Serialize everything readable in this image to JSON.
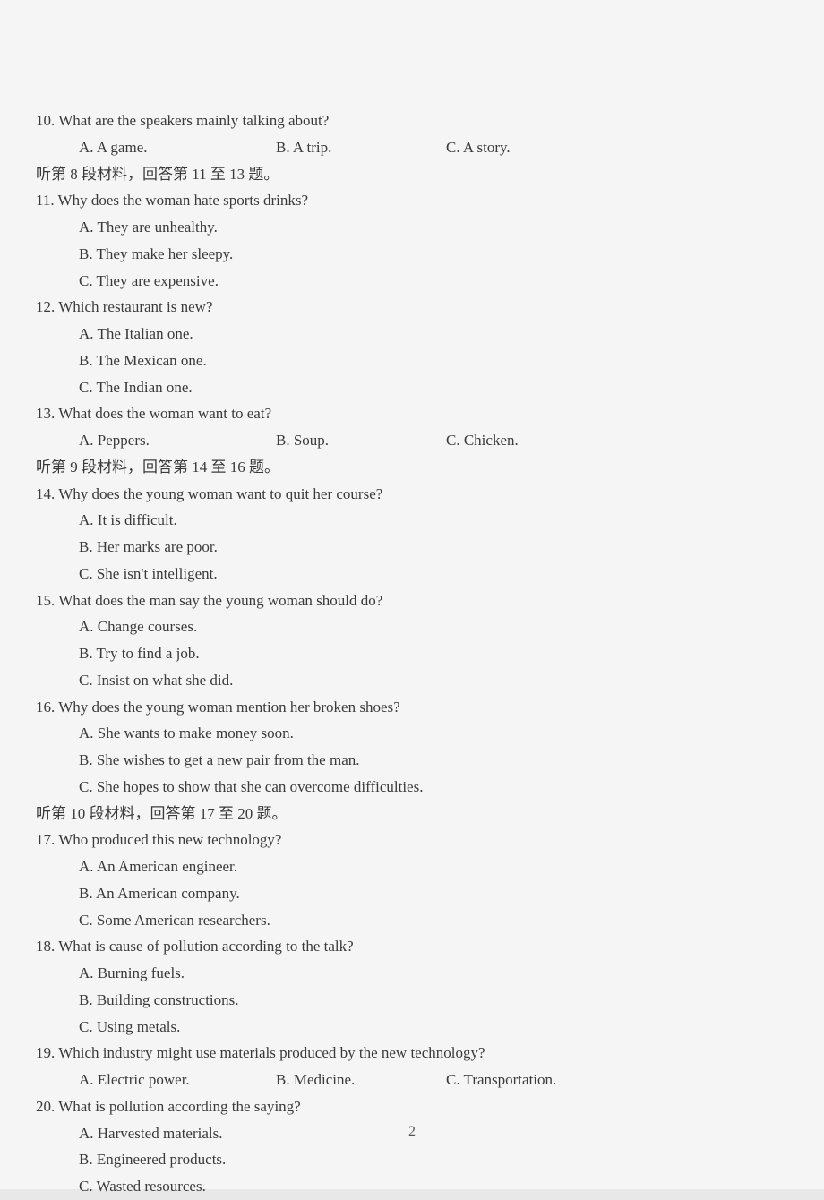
{
  "q10": {
    "prompt": "10. What are the speakers mainly talking about?",
    "a": "A. A game.",
    "b": "B. A trip.",
    "c": "C. A story."
  },
  "section8": "听第 8 段材料，回答第 11 至 13 题。",
  "q11": {
    "prompt": "11. Why does the woman hate sports drinks?",
    "a": "A. They are unhealthy.",
    "b": "B. They make her sleepy.",
    "c": "C. They are expensive."
  },
  "q12": {
    "prompt": "12. Which restaurant is new?",
    "a": "A. The Italian one.",
    "b": "B. The Mexican one.",
    "c": "C. The Indian one."
  },
  "q13": {
    "prompt": "13. What does the woman want to eat?",
    "a": "A. Peppers.",
    "b": "B. Soup.",
    "c": "C. Chicken."
  },
  "section9": "听第 9 段材料，回答第 14 至 16 题。",
  "q14": {
    "prompt": "14. Why does the young woman want to quit her course?",
    "a": "A. It is difficult.",
    "b": "B. Her marks are poor.",
    "c": "C. She isn't intelligent."
  },
  "q15": {
    "prompt": "15. What does the man say the young woman should do?",
    "a": "A. Change courses.",
    "b": "B. Try to find a job.",
    "c": "C. Insist on what she did."
  },
  "q16": {
    "prompt": "16. Why does the young woman mention her broken shoes?",
    "a": "A. She wants to make money soon.",
    "b": "B. She wishes to get a new pair from the man.",
    "c": "C. She hopes to show that she can overcome difficulties."
  },
  "section10": "听第 10 段材料，回答第 17 至 20 题。",
  "q17": {
    "prompt": "17. Who produced this new technology?",
    "a": "A. An American engineer.",
    "b": "B. An American company.",
    "c": "C. Some American researchers."
  },
  "q18": {
    "prompt": "18. What is cause of pollution according to the talk?",
    "a": "A. Burning fuels.",
    "b": "B. Building constructions.",
    "c": "C. Using metals."
  },
  "q19": {
    "prompt": "19. Which industry might use materials produced by the new technology?",
    "a": "A. Electric power.",
    "b": "B. Medicine.",
    "c": "C. Transportation."
  },
  "q20": {
    "prompt": "20. What is pollution according the saying?",
    "a": "A. Harvested materials.",
    "b": "B. Engineered products.",
    "c": "C. Wasted resources."
  },
  "pageNumber": "2"
}
